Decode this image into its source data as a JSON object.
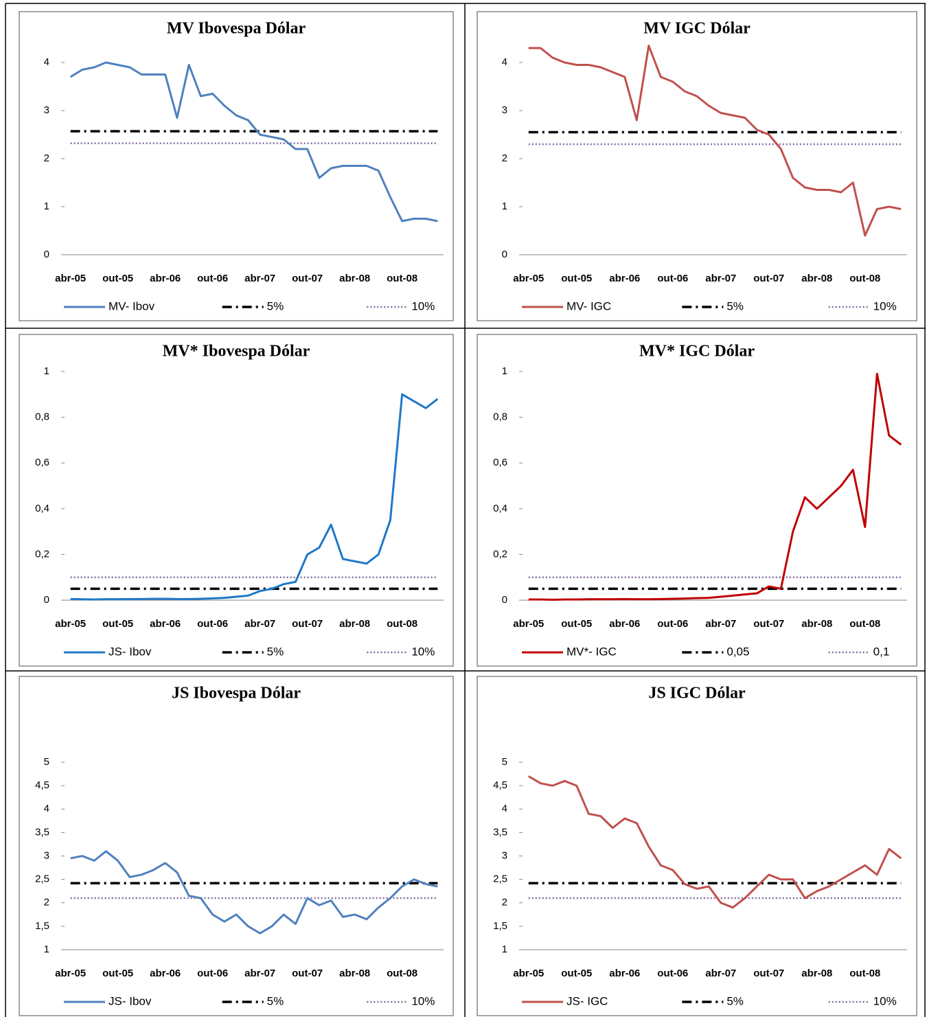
{
  "chart_data": [
    {
      "type": "line",
      "title": "MV  Ibovespa  Dólar",
      "categories": [
        "abr-05",
        null,
        null,
        null,
        "out-05",
        null,
        null,
        null,
        "abr-06",
        null,
        null,
        null,
        "out-06",
        null,
        null,
        null,
        "abr-07",
        null,
        null,
        null,
        "out-07",
        null,
        null,
        null,
        "abr-08",
        null,
        null,
        null,
        "out-08",
        null,
        null,
        null
      ],
      "ylim": [
        0,
        4.5
      ],
      "yticks": [
        0,
        1,
        2,
        3,
        4
      ],
      "series": [
        {
          "name": "MV- Ibov",
          "color": "#4f81bd",
          "style": "solid",
          "values": [
            3.7,
            3.85,
            3.9,
            4.0,
            3.95,
            3.9,
            3.75,
            3.75,
            3.75,
            2.85,
            3.95,
            3.3,
            3.35,
            3.1,
            2.9,
            2.8,
            2.5,
            2.45,
            2.4,
            2.2,
            2.2,
            1.6,
            1.8,
            1.85,
            1.85,
            1.85,
            1.75,
            1.2,
            0.7,
            0.75,
            0.75,
            0.7
          ]
        },
        {
          "name": "5%",
          "color": "#000000",
          "style": "dashdot",
          "values": [
            2.57,
            2.57,
            2.57,
            2.57,
            2.57,
            2.57,
            2.57,
            2.57,
            2.57,
            2.57,
            2.57,
            2.57,
            2.57,
            2.57,
            2.57,
            2.57,
            2.57,
            2.57,
            2.57,
            2.57,
            2.57,
            2.57,
            2.57,
            2.57,
            2.57,
            2.57,
            2.57,
            2.57,
            2.57,
            2.57,
            2.57,
            2.57
          ]
        },
        {
          "name": "10%",
          "color": "#8064a2",
          "style": "dotted",
          "values": [
            2.32,
            2.32,
            2.32,
            2.32,
            2.32,
            2.32,
            2.32,
            2.32,
            2.32,
            2.32,
            2.32,
            2.32,
            2.32,
            2.32,
            2.32,
            2.32,
            2.32,
            2.32,
            2.32,
            2.32,
            2.32,
            2.32,
            2.32,
            2.32,
            2.32,
            2.32,
            2.32,
            2.32,
            2.32,
            2.32,
            2.32,
            2.32
          ]
        }
      ]
    },
    {
      "type": "line",
      "title": "MV  IGC  Dólar",
      "categories": [
        "abr-05",
        null,
        null,
        null,
        "out-05",
        null,
        null,
        null,
        "abr-06",
        null,
        null,
        null,
        "out-06",
        null,
        null,
        null,
        "abr-07",
        null,
        null,
        null,
        "out-07",
        null,
        null,
        null,
        "abr-08",
        null,
        null,
        null,
        "out-08",
        null,
        null,
        null
      ],
      "ylim": [
        0,
        4.5
      ],
      "yticks": [
        0,
        1,
        2,
        3,
        4
      ],
      "series": [
        {
          "name": "MV- IGC",
          "color": "#c0504d",
          "style": "solid",
          "values": [
            4.3,
            4.3,
            4.1,
            4.0,
            3.95,
            3.95,
            3.9,
            3.8,
            3.7,
            2.8,
            4.35,
            3.7,
            3.6,
            3.4,
            3.3,
            3.1,
            2.95,
            2.9,
            2.85,
            2.6,
            2.5,
            2.2,
            1.6,
            1.4,
            1.35,
            1.35,
            1.3,
            1.5,
            0.4,
            0.95,
            1.0,
            0.95
          ]
        },
        {
          "name": "5%",
          "color": "#000000",
          "style": "dashdot",
          "values": [
            2.55,
            2.55,
            2.55,
            2.55,
            2.55,
            2.55,
            2.55,
            2.55,
            2.55,
            2.55,
            2.55,
            2.55,
            2.55,
            2.55,
            2.55,
            2.55,
            2.55,
            2.55,
            2.55,
            2.55,
            2.55,
            2.55,
            2.55,
            2.55,
            2.55,
            2.55,
            2.55,
            2.55,
            2.55,
            2.55,
            2.55,
            2.55
          ]
        },
        {
          "name": "10%",
          "color": "#8064a2",
          "style": "dotted",
          "values": [
            2.3,
            2.3,
            2.3,
            2.3,
            2.3,
            2.3,
            2.3,
            2.3,
            2.3,
            2.3,
            2.3,
            2.3,
            2.3,
            2.3,
            2.3,
            2.3,
            2.3,
            2.3,
            2.3,
            2.3,
            2.3,
            2.3,
            2.3,
            2.3,
            2.3,
            2.3,
            2.3,
            2.3,
            2.3,
            2.3,
            2.3,
            2.3
          ]
        }
      ]
    },
    {
      "type": "line",
      "title": "MV*  Ibovespa  Dólar",
      "categories": [
        "abr-05",
        null,
        null,
        null,
        "out-05",
        null,
        null,
        null,
        "abr-06",
        null,
        null,
        null,
        "out-06",
        null,
        null,
        null,
        "abr-07",
        null,
        null,
        null,
        "out-07",
        null,
        null,
        null,
        "abr-08",
        null,
        null,
        null,
        "out-08",
        null,
        null,
        null
      ],
      "ylim": [
        0,
        1
      ],
      "yticks": [
        0,
        {
          "value": 0.2,
          "label": "0,2"
        },
        {
          "value": 0.4,
          "label": "0,4"
        },
        {
          "value": 0.6,
          "label": "0,6"
        },
        {
          "value": 0.8,
          "label": "0,8"
        },
        1
      ],
      "series": [
        {
          "name": "JS- Ibov",
          "color": "#1f78c8",
          "style": "solid",
          "values": [
            0.005,
            0.004,
            0.003,
            0.004,
            0.004,
            0.005,
            0.005,
            0.006,
            0.006,
            0.005,
            0.005,
            0.006,
            0.008,
            0.01,
            0.015,
            0.02,
            0.04,
            0.05,
            0.07,
            0.08,
            0.2,
            0.23,
            0.33,
            0.18,
            0.17,
            0.16,
            0.2,
            0.35,
            0.9,
            0.87,
            0.84,
            0.88
          ]
        },
        {
          "name": "5%",
          "color": "#000000",
          "style": "dashdot",
          "values": [
            0.05,
            0.05,
            0.05,
            0.05,
            0.05,
            0.05,
            0.05,
            0.05,
            0.05,
            0.05,
            0.05,
            0.05,
            0.05,
            0.05,
            0.05,
            0.05,
            0.05,
            0.05,
            0.05,
            0.05,
            0.05,
            0.05,
            0.05,
            0.05,
            0.05,
            0.05,
            0.05,
            0.05,
            0.05,
            0.05,
            0.05,
            0.05
          ]
        },
        {
          "name": "10%",
          "color": "#8064a2",
          "style": "dotted",
          "values": [
            0.1,
            0.1,
            0.1,
            0.1,
            0.1,
            0.1,
            0.1,
            0.1,
            0.1,
            0.1,
            0.1,
            0.1,
            0.1,
            0.1,
            0.1,
            0.1,
            0.1,
            0.1,
            0.1,
            0.1,
            0.1,
            0.1,
            0.1,
            0.1,
            0.1,
            0.1,
            0.1,
            0.1,
            0.1,
            0.1,
            0.1,
            0.1
          ]
        }
      ]
    },
    {
      "type": "line",
      "title": "MV*  IGC  Dólar",
      "categories": [
        "abr-05",
        null,
        null,
        null,
        "out-05",
        null,
        null,
        null,
        "abr-06",
        null,
        null,
        null,
        "out-06",
        null,
        null,
        null,
        "abr-07",
        null,
        null,
        null,
        "out-07",
        null,
        null,
        null,
        "abr-08",
        null,
        null,
        null,
        "out-08",
        null,
        null,
        null
      ],
      "ylim": [
        0,
        1
      ],
      "yticks": [
        0,
        {
          "value": 0.2,
          "label": "0,2"
        },
        {
          "value": 0.4,
          "label": "0,4"
        },
        {
          "value": 0.6,
          "label": "0,6"
        },
        {
          "value": 0.8,
          "label": "0,8"
        },
        1
      ],
      "series": [
        {
          "name": "MV*- IGC",
          "color": "#c00000",
          "style": "solid",
          "values": [
            0.003,
            0.003,
            0.002,
            0.003,
            0.003,
            0.004,
            0.004,
            0.004,
            0.005,
            0.004,
            0.004,
            0.005,
            0.006,
            0.007,
            0.009,
            0.01,
            0.015,
            0.02,
            0.025,
            0.03,
            0.06,
            0.05,
            0.3,
            0.45,
            0.4,
            0.45,
            0.5,
            0.57,
            0.32,
            0.99,
            0.72,
            0.68
          ]
        },
        {
          "name": "0,05",
          "color": "#000000",
          "style": "dashdot",
          "values": [
            0.05,
            0.05,
            0.05,
            0.05,
            0.05,
            0.05,
            0.05,
            0.05,
            0.05,
            0.05,
            0.05,
            0.05,
            0.05,
            0.05,
            0.05,
            0.05,
            0.05,
            0.05,
            0.05,
            0.05,
            0.05,
            0.05,
            0.05,
            0.05,
            0.05,
            0.05,
            0.05,
            0.05,
            0.05,
            0.05,
            0.05,
            0.05
          ]
        },
        {
          "name": "0,1",
          "color": "#8064a2",
          "style": "dotted",
          "values": [
            0.1,
            0.1,
            0.1,
            0.1,
            0.1,
            0.1,
            0.1,
            0.1,
            0.1,
            0.1,
            0.1,
            0.1,
            0.1,
            0.1,
            0.1,
            0.1,
            0.1,
            0.1,
            0.1,
            0.1,
            0.1,
            0.1,
            0.1,
            0.1,
            0.1,
            0.1,
            0.1,
            0.1,
            0.1,
            0.1,
            0.1,
            0.1
          ]
        }
      ]
    },
    {
      "type": "line",
      "title": "JS  Ibovespa  Dólar",
      "categories": [
        "abr-05",
        null,
        null,
        null,
        "out-05",
        null,
        null,
        null,
        "abr-06",
        null,
        null,
        null,
        "out-06",
        null,
        null,
        null,
        "abr-07",
        null,
        null,
        null,
        "out-07",
        null,
        null,
        null,
        "abr-08",
        null,
        null,
        null,
        "out-08",
        null,
        null,
        null
      ],
      "ylim": [
        1,
        5
      ],
      "yticks": [
        1,
        {
          "value": 1.5,
          "label": "1,5"
        },
        2,
        {
          "value": 2.5,
          "label": "2,5"
        },
        3,
        {
          "value": 3.5,
          "label": "3,5"
        },
        4,
        {
          "value": 4.5,
          "label": "4,5"
        },
        5
      ],
      "series": [
        {
          "name": "JS- Ibov",
          "color": "#4f81bd",
          "style": "solid",
          "values": [
            2.95,
            3.0,
            2.9,
            3.1,
            2.9,
            2.55,
            2.6,
            2.7,
            2.85,
            2.65,
            2.15,
            2.1,
            1.75,
            1.6,
            1.75,
            1.5,
            1.35,
            1.5,
            1.75,
            1.55,
            2.1,
            1.95,
            2.05,
            1.7,
            1.75,
            1.65,
            1.9,
            2.1,
            2.35,
            2.5,
            2.4,
            2.35
          ]
        },
        {
          "name": "5%",
          "color": "#000000",
          "style": "dashdot",
          "values": [
            2.42,
            2.42,
            2.42,
            2.42,
            2.42,
            2.42,
            2.42,
            2.42,
            2.42,
            2.42,
            2.42,
            2.42,
            2.42,
            2.42,
            2.42,
            2.42,
            2.42,
            2.42,
            2.42,
            2.42,
            2.42,
            2.42,
            2.42,
            2.42,
            2.42,
            2.42,
            2.42,
            2.42,
            2.42,
            2.42,
            2.42,
            2.42
          ]
        },
        {
          "name": "10%",
          "color": "#8064a2",
          "style": "dotted",
          "values": [
            2.1,
            2.1,
            2.1,
            2.1,
            2.1,
            2.1,
            2.1,
            2.1,
            2.1,
            2.1,
            2.1,
            2.1,
            2.1,
            2.1,
            2.1,
            2.1,
            2.1,
            2.1,
            2.1,
            2.1,
            2.1,
            2.1,
            2.1,
            2.1,
            2.1,
            2.1,
            2.1,
            2.1,
            2.1,
            2.1,
            2.1,
            2.1
          ]
        }
      ]
    },
    {
      "type": "line",
      "title": "JS  IGC  Dólar",
      "categories": [
        "abr-05",
        null,
        null,
        null,
        "out-05",
        null,
        null,
        null,
        "abr-06",
        null,
        null,
        null,
        "out-06",
        null,
        null,
        null,
        "abr-07",
        null,
        null,
        null,
        "out-07",
        null,
        null,
        null,
        "abr-08",
        null,
        null,
        null,
        "out-08",
        null,
        null,
        null
      ],
      "ylim": [
        1,
        5
      ],
      "yticks": [
        1,
        {
          "value": 1.5,
          "label": "1,5"
        },
        2,
        {
          "value": 2.5,
          "label": "2,5"
        },
        3,
        {
          "value": 3.5,
          "label": "3,5"
        },
        4,
        {
          "value": 4.5,
          "label": "4,5"
        },
        5
      ],
      "series": [
        {
          "name": "JS- IGC",
          "color": "#c0504d",
          "style": "solid",
          "values": [
            4.7,
            4.55,
            4.5,
            4.6,
            4.5,
            3.9,
            3.85,
            3.6,
            3.8,
            3.7,
            3.2,
            2.8,
            2.7,
            2.4,
            2.3,
            2.35,
            2.0,
            1.9,
            2.1,
            2.35,
            2.6,
            2.5,
            2.5,
            2.1,
            2.25,
            2.35,
            2.5,
            2.65,
            2.8,
            2.6,
            3.15,
            2.95
          ]
        },
        {
          "name": "5%",
          "color": "#000000",
          "style": "dashdot",
          "values": [
            2.42,
            2.42,
            2.42,
            2.42,
            2.42,
            2.42,
            2.42,
            2.42,
            2.42,
            2.42,
            2.42,
            2.42,
            2.42,
            2.42,
            2.42,
            2.42,
            2.42,
            2.42,
            2.42,
            2.42,
            2.42,
            2.42,
            2.42,
            2.42,
            2.42,
            2.42,
            2.42,
            2.42,
            2.42,
            2.42,
            2.42,
            2.42
          ]
        },
        {
          "name": "10%",
          "color": "#8064a2",
          "style": "dotted",
          "values": [
            2.1,
            2.1,
            2.1,
            2.1,
            2.1,
            2.1,
            2.1,
            2.1,
            2.1,
            2.1,
            2.1,
            2.1,
            2.1,
            2.1,
            2.1,
            2.1,
            2.1,
            2.1,
            2.1,
            2.1,
            2.1,
            2.1,
            2.1,
            2.1,
            2.1,
            2.1,
            2.1,
            2.1,
            2.1,
            2.1,
            2.1,
            2.1
          ]
        }
      ]
    }
  ]
}
